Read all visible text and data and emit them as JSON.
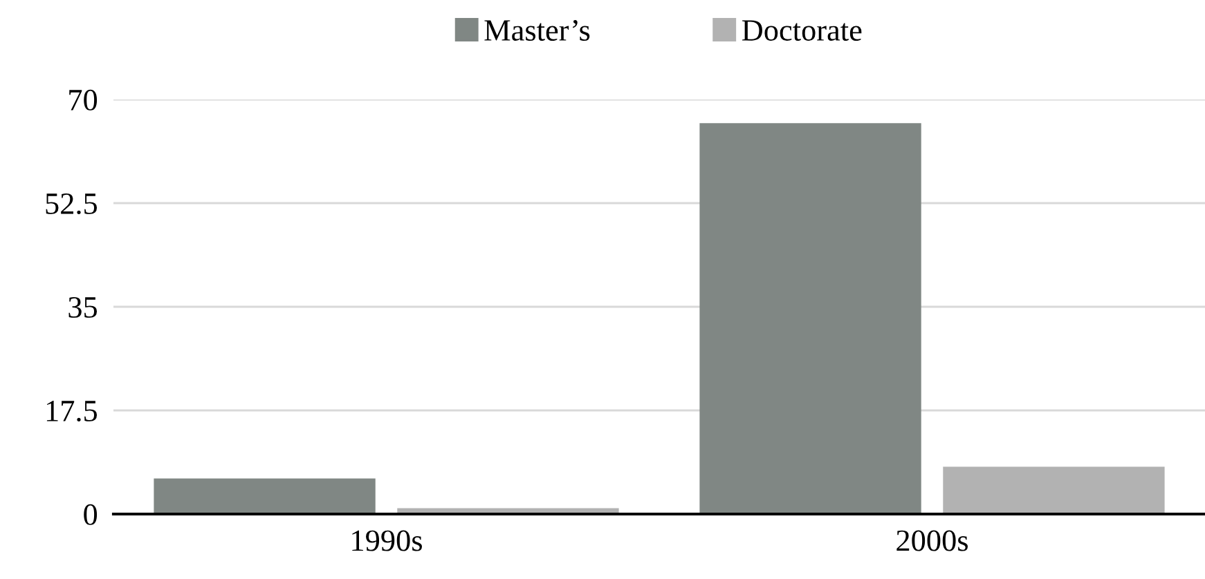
{
  "chart_data": {
    "type": "bar",
    "categories": [
      "1990s",
      "2000s"
    ],
    "series": [
      {
        "name": "Master’s",
        "color": "#808784",
        "values": [
          6,
          66
        ]
      },
      {
        "name": "Doctorate",
        "color": "#b2b2b2",
        "values": [
          1,
          8
        ]
      }
    ],
    "ylim": [
      0,
      70
    ],
    "yticks": [
      0,
      17.5,
      35,
      52.5,
      70
    ],
    "grid": "y",
    "legend": "top"
  }
}
